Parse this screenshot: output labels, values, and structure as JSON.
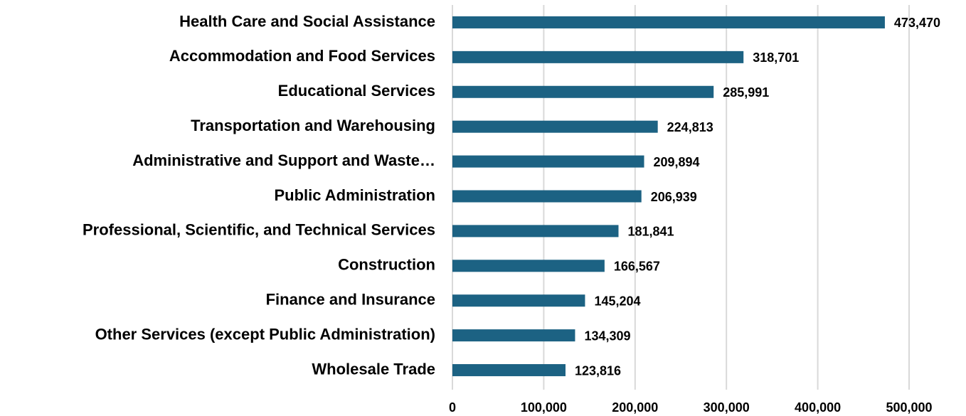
{
  "chart_data": {
    "type": "bar",
    "orientation": "horizontal",
    "categories": [
      "Health Care and Social Assistance",
      "Accommodation and Food Services",
      "Educational Services",
      "Transportation and Warehousing",
      "Administrative and Support and Waste…",
      "Public Administration",
      "Professional, Scientific, and Technical Services",
      "Construction",
      "Finance and Insurance",
      "Other Services (except Public Administration)",
      "Wholesale Trade"
    ],
    "values": [
      473470,
      318701,
      285991,
      224813,
      209894,
      206939,
      181841,
      166567,
      145204,
      134309,
      123816
    ],
    "value_labels": [
      "473,470",
      "318,701",
      "285,991",
      "224,813",
      "209,894",
      "206,939",
      "181,841",
      "166,567",
      "145,204",
      "134,309",
      "123,816"
    ],
    "color": "#1c6283",
    "xlim": [
      0,
      500000
    ],
    "xticks": [
      0,
      {
        "value": 100000,
        "label": "100,000"
      },
      {
        "value": 200000,
        "label": "200,000"
      },
      {
        "value": 300000,
        "label": "300,000"
      },
      {
        "value": 400000,
        "label": "400,000"
      },
      {
        "value": 500000,
        "label": "500,000"
      }
    ],
    "grid": true
  }
}
